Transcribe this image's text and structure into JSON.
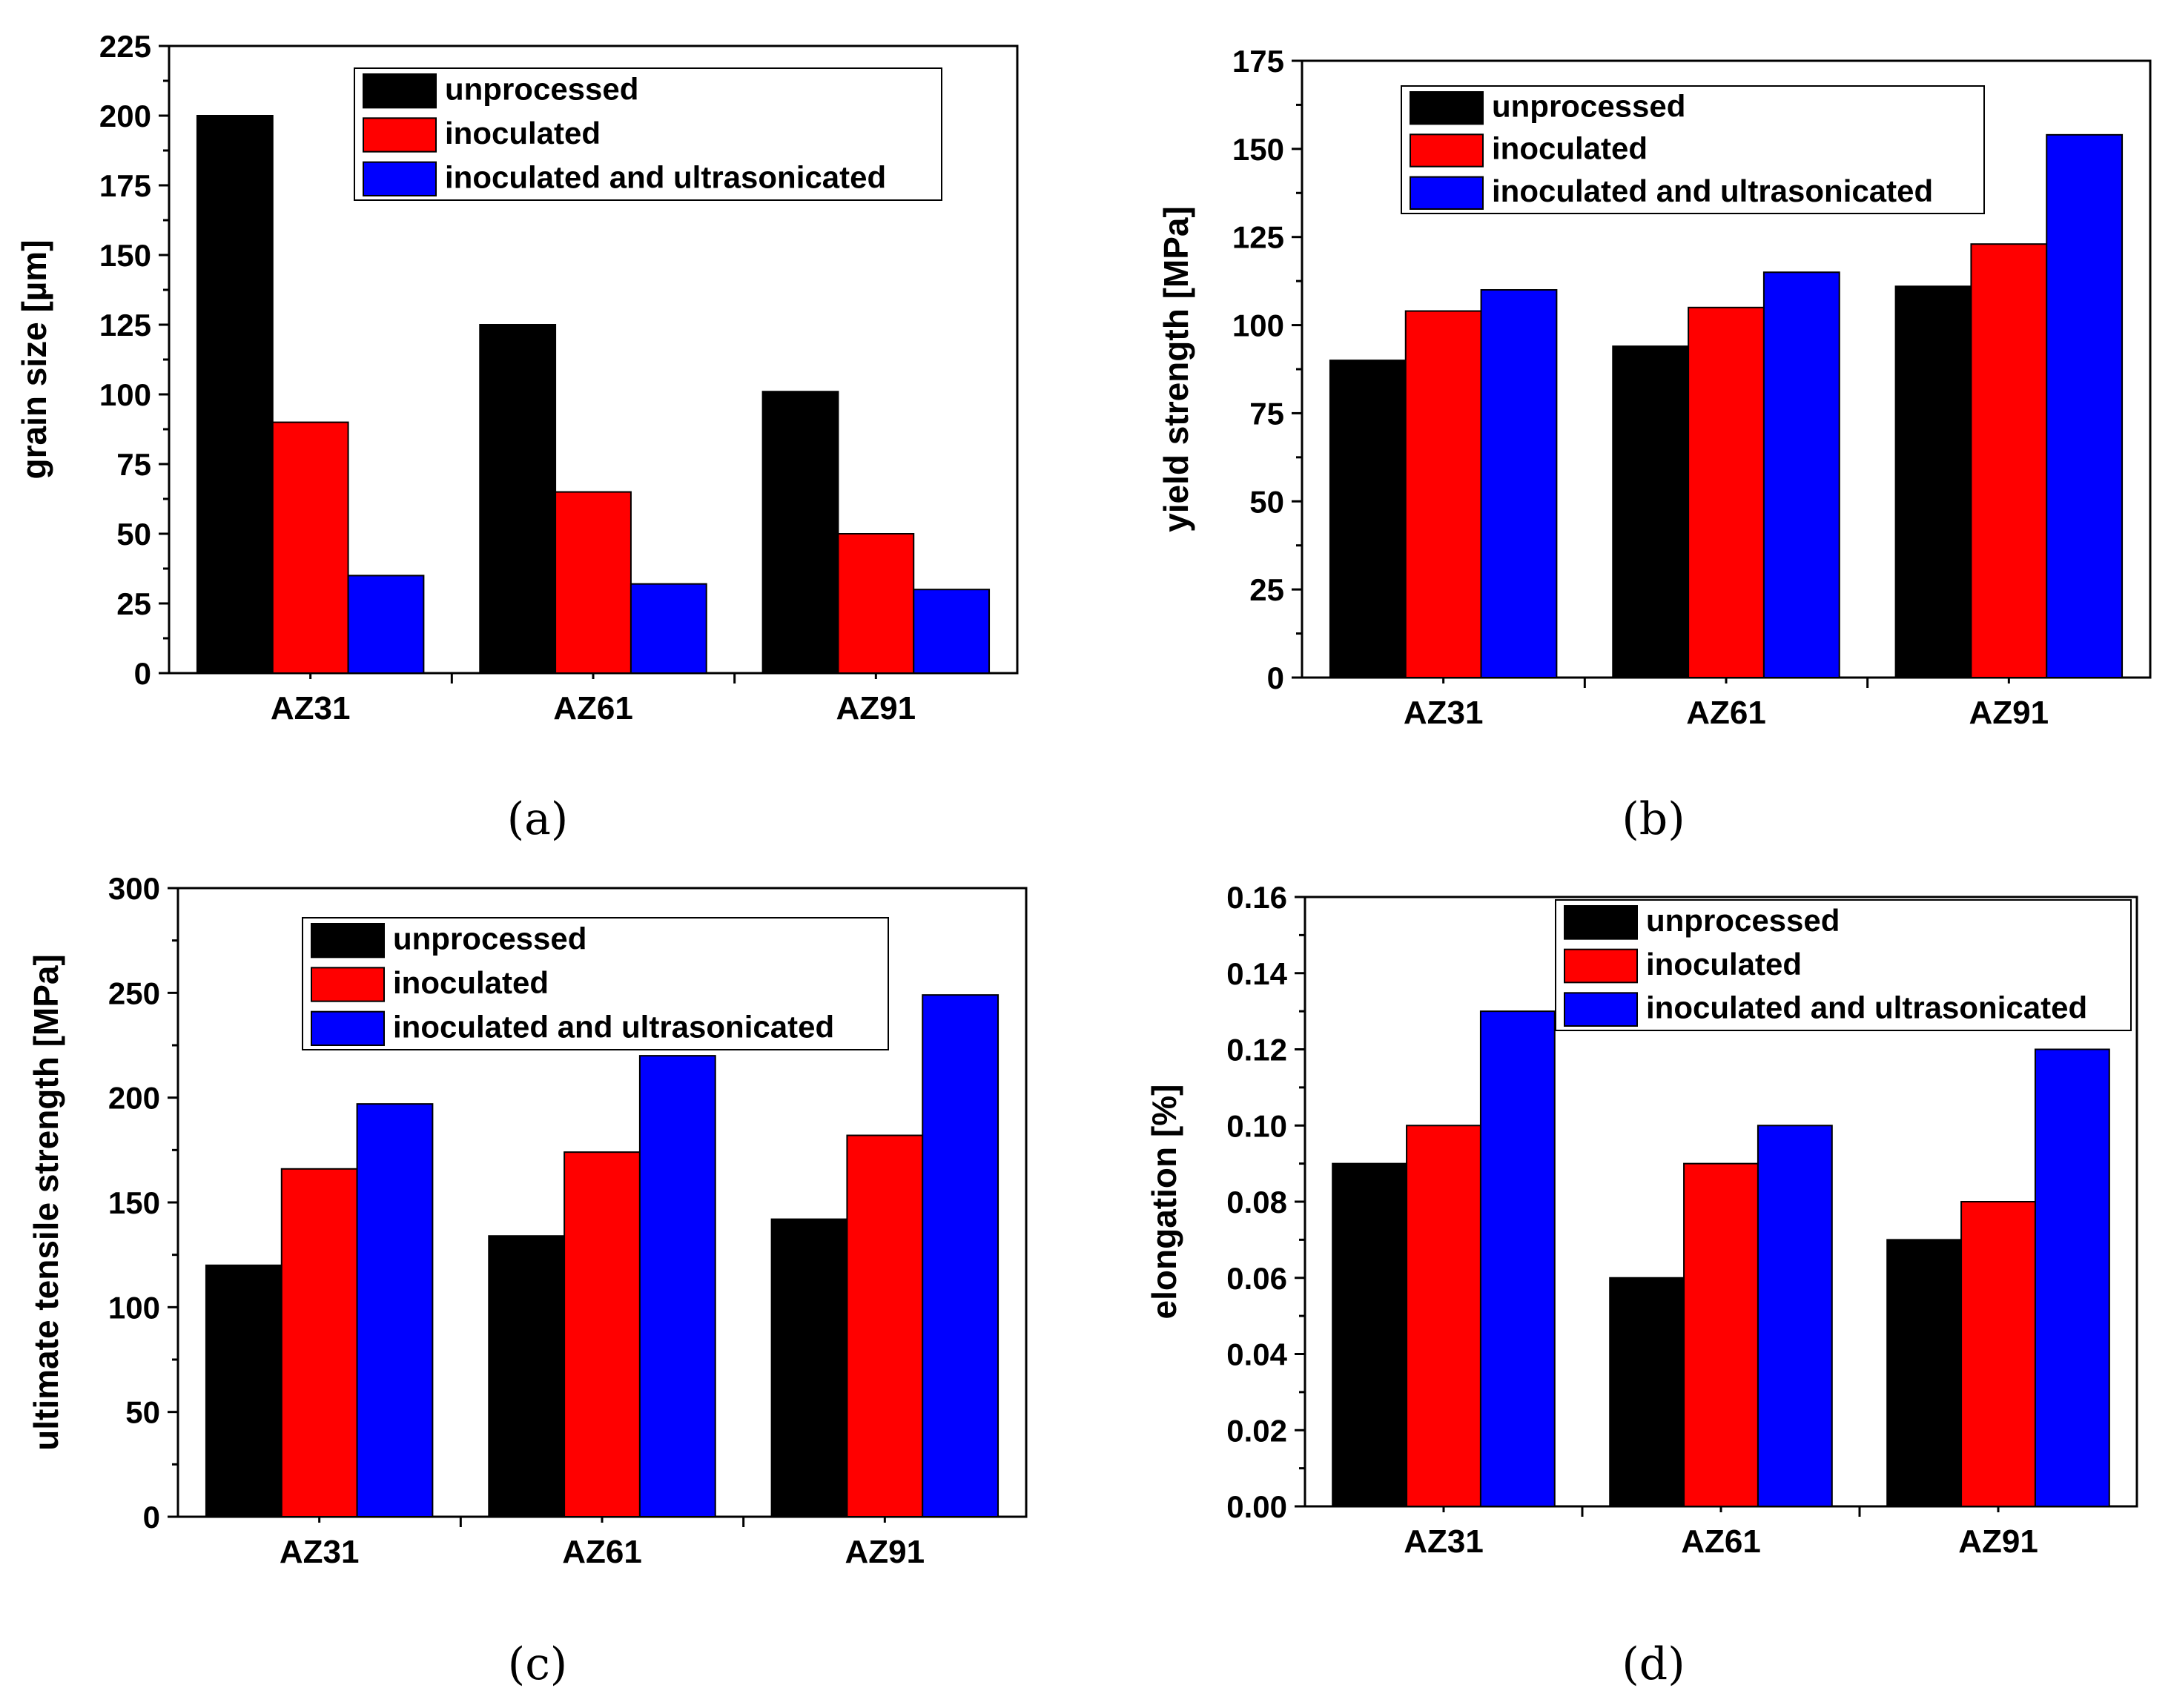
{
  "series_names": [
    "unprocessed",
    "inoculated",
    "inoculated and ultrasonicated"
  ],
  "colors": {
    "unprocessed": "#000000",
    "inoculated": "#ff0000",
    "inoculated and ultrasonicated": "#0000ff"
  },
  "chart_data": [
    {
      "type": "bar",
      "panel": "(a)",
      "title": "",
      "categories": [
        "AZ31",
        "AZ61",
        "AZ91"
      ],
      "series": [
        {
          "name": "unprocessed",
          "values": [
            200,
            125,
            101
          ]
        },
        {
          "name": "inoculated",
          "values": [
            90,
            65,
            50
          ]
        },
        {
          "name": "inoculated and ultrasonicated",
          "values": [
            35,
            32,
            30
          ]
        }
      ],
      "xlabel": "",
      "ylabel": "grain size [µm]",
      "ylim": [
        0,
        225
      ],
      "yticks": [
        "0",
        "25",
        "50",
        "75",
        "100",
        "125",
        "150",
        "175",
        "200",
        "225"
      ],
      "legend": "top-right",
      "grid": false
    },
    {
      "type": "bar",
      "panel": "(b)",
      "title": "",
      "categories": [
        "AZ31",
        "AZ61",
        "AZ91"
      ],
      "series": [
        {
          "name": "unprocessed",
          "values": [
            90,
            94,
            111
          ]
        },
        {
          "name": "inoculated",
          "values": [
            104,
            105,
            123
          ]
        },
        {
          "name": "inoculated and ultrasonicated",
          "values": [
            110,
            115,
            154
          ]
        }
      ],
      "xlabel": "",
      "ylabel": "yield strength [MPa]",
      "ylim": [
        0,
        175
      ],
      "yticks": [
        "0",
        "25",
        "50",
        "75",
        "100",
        "125",
        "150",
        "175"
      ],
      "legend": "top-right",
      "grid": false
    },
    {
      "type": "bar",
      "panel": "(c)",
      "title": "",
      "categories": [
        "AZ31",
        "AZ61",
        "AZ91"
      ],
      "series": [
        {
          "name": "unprocessed",
          "values": [
            120,
            134,
            142
          ]
        },
        {
          "name": "inoculated",
          "values": [
            166,
            174,
            182
          ]
        },
        {
          "name": "inoculated and ultrasonicated",
          "values": [
            197,
            220,
            249
          ]
        }
      ],
      "xlabel": "",
      "ylabel": "ultimate tensile strength [MPa]",
      "ylim": [
        0,
        300
      ],
      "yticks": [
        "0",
        "50",
        "100",
        "150",
        "200",
        "250",
        "300"
      ],
      "legend": "top-right",
      "grid": false
    },
    {
      "type": "bar",
      "panel": "(d)",
      "title": "",
      "categories": [
        "AZ31",
        "AZ61",
        "AZ91"
      ],
      "series": [
        {
          "name": "unprocessed",
          "values": [
            0.09,
            0.06,
            0.07
          ]
        },
        {
          "name": "inoculated",
          "values": [
            0.1,
            0.09,
            0.08
          ]
        },
        {
          "name": "inoculated and ultrasonicated",
          "values": [
            0.13,
            0.1,
            0.12
          ]
        }
      ],
      "xlabel": "",
      "ylabel": "elongation [%]",
      "ylim": [
        0,
        0.16
      ],
      "yticks": [
        "0.00",
        "0.02",
        "0.04",
        "0.06",
        "0.08",
        "0.10",
        "0.12",
        "0.14",
        "0.16"
      ],
      "legend": "top-right",
      "grid": false
    }
  ]
}
